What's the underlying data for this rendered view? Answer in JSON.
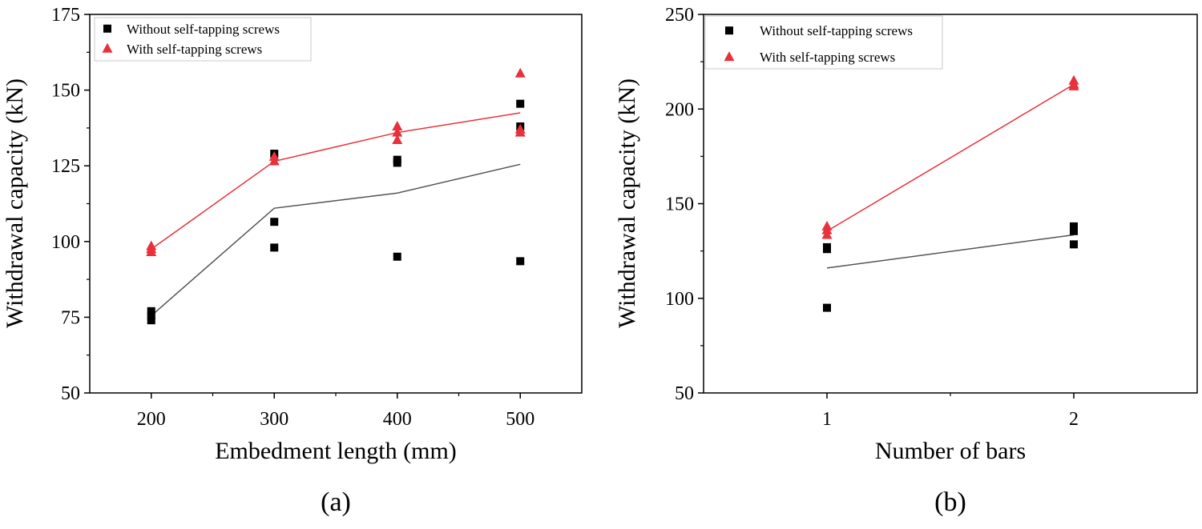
{
  "chart_data": [
    {
      "type": "scatter",
      "panel_label": "(a)",
      "xlabel": "Embedment length (mm)",
      "ylabel": "Withdrawal capacity (kN)",
      "xlim": [
        150,
        550
      ],
      "ylim": [
        50,
        175
      ],
      "xticks": [
        200,
        300,
        400,
        500
      ],
      "yticks": [
        50,
        75,
        100,
        125,
        150,
        175
      ],
      "legend_position": "top-left",
      "series": [
        {
          "name": "Without self-tapping screws",
          "marker": "square",
          "color": "#000000",
          "points": [
            {
              "x": 200,
              "y": 77
            },
            {
              "x": 200,
              "y": 75.5
            },
            {
              "x": 200,
              "y": 74
            },
            {
              "x": 300,
              "y": 129
            },
            {
              "x": 300,
              "y": 106.5
            },
            {
              "x": 300,
              "y": 98
            },
            {
              "x": 400,
              "y": 127
            },
            {
              "x": 400,
              "y": 126
            },
            {
              "x": 400,
              "y": 95
            },
            {
              "x": 500,
              "y": 145.5
            },
            {
              "x": 500,
              "y": 138
            },
            {
              "x": 500,
              "y": 93.5
            }
          ],
          "mean_line": {
            "x": [
              200,
              300,
              400,
              500
            ],
            "y": [
              75.5,
              111,
              116,
              125.5
            ],
            "color": "#555555"
          }
        },
        {
          "name": "With self-tapping screws",
          "marker": "triangle",
          "color": "#e8313a",
          "points": [
            {
              "x": 200,
              "y": 98.5
            },
            {
              "x": 200,
              "y": 97.5
            },
            {
              "x": 200,
              "y": 96.5
            },
            {
              "x": 300,
              "y": 128
            },
            {
              "x": 300,
              "y": 126.5
            },
            {
              "x": 400,
              "y": 138
            },
            {
              "x": 400,
              "y": 136
            },
            {
              "x": 400,
              "y": 133.5
            },
            {
              "x": 500,
              "y": 155.5
            },
            {
              "x": 500,
              "y": 137
            },
            {
              "x": 500,
              "y": 136
            }
          ],
          "mean_line": {
            "x": [
              200,
              300,
              400,
              500
            ],
            "y": [
              97.5,
              126.5,
              136,
              142.5
            ],
            "color": "#e8313a"
          }
        }
      ]
    },
    {
      "type": "scatter",
      "panel_label": "(b)",
      "xlabel": "Number of bars",
      "ylabel": "Withdrawal capacity (kN)",
      "xlim": [
        0.5,
        2.5
      ],
      "ylim": [
        50,
        250
      ],
      "xticks": [
        1,
        2
      ],
      "yticks": [
        50,
        100,
        150,
        200,
        250
      ],
      "legend_position": "top-left",
      "series": [
        {
          "name": "Without self-tapping screws",
          "marker": "square",
          "color": "#000000",
          "points": [
            {
              "x": 1,
              "y": 127
            },
            {
              "x": 1,
              "y": 126
            },
            {
              "x": 1,
              "y": 95
            },
            {
              "x": 2,
              "y": 138
            },
            {
              "x": 2,
              "y": 135.5
            },
            {
              "x": 2,
              "y": 128.5
            }
          ],
          "mean_line": {
            "x": [
              1,
              2
            ],
            "y": [
              116,
              133.5
            ],
            "color": "#555555"
          }
        },
        {
          "name": "With self-tapping screws",
          "marker": "triangle",
          "color": "#e8313a",
          "points": [
            {
              "x": 1,
              "y": 138
            },
            {
              "x": 1,
              "y": 136
            },
            {
              "x": 1,
              "y": 133.5
            },
            {
              "x": 2,
              "y": 215
            },
            {
              "x": 2,
              "y": 213
            },
            {
              "x": 2,
              "y": 212
            }
          ],
          "mean_line": {
            "x": [
              1,
              2
            ],
            "y": [
              135.5,
              213
            ],
            "color": "#e8313a"
          }
        }
      ]
    }
  ]
}
